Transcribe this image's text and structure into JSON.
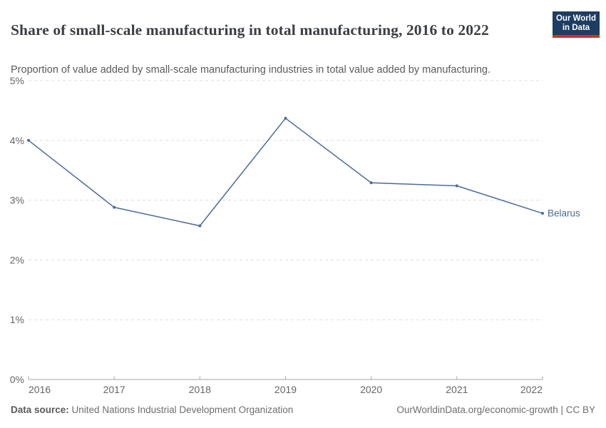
{
  "header": {
    "title": "Share of small-scale manufacturing in total manufacturing, 2016 to 2022",
    "subtitle": "Proportion of value added by small-scale manufacturing industries in total value added by manufacturing.",
    "logo": {
      "line1": "Our World",
      "line2": "in Data",
      "bg_color": "#1d3d63",
      "stripe_color": "#cf302b"
    }
  },
  "chart_data": {
    "type": "line",
    "title": "Share of small-scale manufacturing in total manufacturing, 2016 to 2022",
    "x": [
      2016,
      2017,
      2018,
      2019,
      2020,
      2021,
      2022
    ],
    "x_labels": [
      "2016",
      "2017",
      "2018",
      "2019",
      "2020",
      "2021",
      "2022"
    ],
    "series": [
      {
        "name": "Belarus",
        "values": [
          4.0,
          2.88,
          2.57,
          4.37,
          3.29,
          3.24,
          2.78
        ],
        "color": "#4c6a9c"
      }
    ],
    "ylim": [
      0,
      5
    ],
    "yticks": [
      0,
      1,
      2,
      3,
      4,
      5
    ],
    "ytick_labels": [
      "0%",
      "1%",
      "2%",
      "3%",
      "4%",
      "5%"
    ],
    "xlabel": "",
    "ylabel": "",
    "grid": "horizontal-dashed",
    "legend": "end-of-line-label",
    "colors": {
      "gridline": "#dddddd",
      "axis": "#a5a5a5",
      "tick_text": "#666666"
    }
  },
  "footer": {
    "source_label": "Data source:",
    "source_value": "United Nations Industrial Development Organization",
    "right_text": "OurWorldinData.org/economic-growth | CC BY"
  }
}
